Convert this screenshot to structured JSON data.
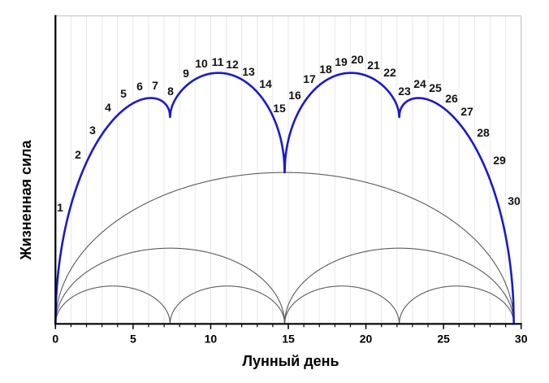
{
  "chart_data": {
    "type": "line",
    "title": "",
    "xlabel": "Лунный день",
    "ylabel": "Жизненная сила",
    "xlim": [
      0,
      30
    ],
    "ylim_relative": [
      0,
      2.03
    ],
    "x_major_ticks": [
      0,
      5,
      10,
      15,
      20,
      25,
      30
    ],
    "x_major_tick_labels": [
      "0",
      "5",
      "10",
      "15",
      "20",
      "25",
      "30"
    ],
    "x_minor_tick_step": 1,
    "grid": "light vertical gridline at every integer lunar day, light top and right frame border",
    "month_length_days": 29.53,
    "cusp_days": [
      7.38,
      14.77,
      22.15
    ],
    "curve_model": "harmonic k is a chain of 'arcs' half-ellipses of equal width (month/arcs) and peak height 'relative_amplitude'; the main blue curve is the pointwise sum of the three gray harmonics, producing cusps at quarter-month days",
    "series": [
      {
        "name": "main-vitality-curve",
        "role": "sum-of-harmonics",
        "color": "#1a1acc",
        "line_width": 2.6,
        "values_by_day": [
          0,
          0.78,
          1.07,
          1.25,
          1.38,
          1.46,
          1.49,
          1.46,
          1.53,
          1.61,
          1.65,
          1.65,
          1.61,
          1.53,
          1.37,
          1.21,
          1.46,
          1.58,
          1.64,
          1.66,
          1.64,
          1.58,
          1.44,
          1.49,
          1.48,
          1.43,
          1.32,
          1.17,
          0.95,
          0.58,
          0
        ]
      },
      {
        "name": "harmonic-1",
        "arcs": 1,
        "relative_amplitude": 1.0,
        "color": "#5a5a5a",
        "line_width": 1.1
      },
      {
        "name": "harmonic-2",
        "arcs": 2,
        "relative_amplitude": 0.5,
        "color": "#5a5a5a",
        "line_width": 1.1
      },
      {
        "name": "harmonic-3",
        "arcs": 4,
        "relative_amplitude": 0.25,
        "color": "#5a5a5a",
        "line_width": 1.1
      }
    ],
    "annotations": {
      "day_numbers": [
        "1",
        "2",
        "3",
        "4",
        "5",
        "6",
        "7",
        "8",
        "9",
        "10",
        "11",
        "12",
        "13",
        "14",
        "15",
        "16",
        "17",
        "18",
        "19",
        "20",
        "21",
        "22",
        "23",
        "24",
        "25",
        "26",
        "27",
        "28",
        "29",
        "30"
      ]
    },
    "legend": "none",
    "y_axis_ticks": "none"
  },
  "colors": {
    "background": "#ffffff",
    "axis": "#000000",
    "gridline": "#e7e7e7",
    "frame_border": "#c8c8c8",
    "main_curve": "#1a1acc",
    "harmonic_curves": "#5a5a5a",
    "text": "#000000"
  }
}
